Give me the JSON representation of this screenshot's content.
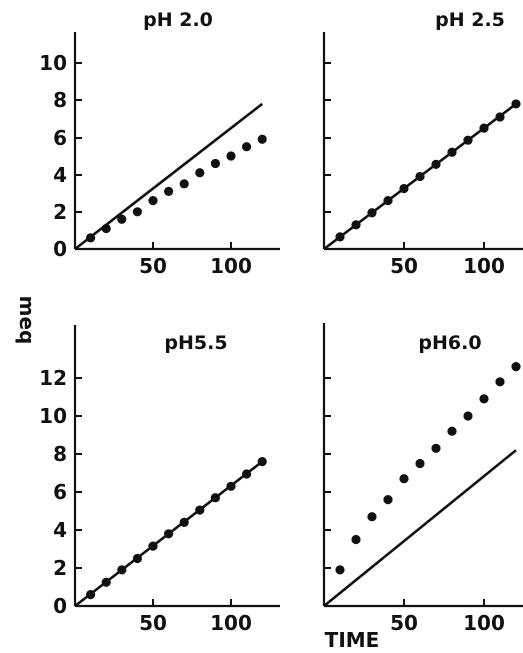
{
  "figure": {
    "ylabel": "meq",
    "xlabel": "TIME"
  },
  "chart_data": [
    {
      "type": "scatter",
      "title": "pH 2.0",
      "xlim": [
        0,
        130
      ],
      "ylim": [
        0,
        11
      ],
      "x_ticks": [
        50,
        100
      ],
      "y_ticks": [
        0,
        2,
        4,
        6,
        8,
        10
      ],
      "line": {
        "x": [
          0,
          120
        ],
        "y": [
          0,
          7.8
        ]
      },
      "points": {
        "x": [
          10,
          20,
          30,
          40,
          50,
          60,
          70,
          80,
          90,
          100,
          110,
          120
        ],
        "y": [
          0.6,
          1.1,
          1.6,
          2.0,
          2.6,
          3.1,
          3.5,
          4.1,
          4.6,
          5.0,
          5.5,
          5.9
        ]
      }
    },
    {
      "type": "scatter",
      "title": "pH 2.5",
      "xlim": [
        0,
        130
      ],
      "ylim": [
        0,
        11
      ],
      "x_ticks": [
        50,
        100
      ],
      "y_ticks": [
        0,
        2,
        4,
        6,
        8,
        10
      ],
      "line": {
        "x": [
          0,
          120
        ],
        "y": [
          0,
          7.8
        ]
      },
      "points": {
        "x": [
          10,
          20,
          30,
          40,
          50,
          60,
          70,
          80,
          90,
          100,
          110,
          120
        ],
        "y": [
          0.65,
          1.3,
          1.95,
          2.6,
          3.25,
          3.9,
          4.55,
          5.2,
          5.85,
          6.5,
          7.1,
          7.8
        ]
      }
    },
    {
      "type": "scatter",
      "title": "pH5.5",
      "xlim": [
        0,
        130
      ],
      "ylim": [
        0,
        14
      ],
      "x_ticks": [
        50,
        100
      ],
      "y_ticks": [
        0,
        2,
        4,
        6,
        8,
        10,
        12
      ],
      "line": {
        "x": [
          0,
          120
        ],
        "y": [
          0,
          7.6
        ]
      },
      "points": {
        "x": [
          10,
          20,
          30,
          40,
          50,
          60,
          70,
          80,
          90,
          100,
          110,
          120
        ],
        "y": [
          0.6,
          1.25,
          1.9,
          2.5,
          3.15,
          3.8,
          4.4,
          5.05,
          5.7,
          6.3,
          6.95,
          7.6
        ]
      }
    },
    {
      "type": "scatter",
      "title": "pH6.0",
      "xlim": [
        0,
        130
      ],
      "ylim": [
        0,
        14
      ],
      "x_ticks": [
        50,
        100
      ],
      "y_ticks": [
        0,
        2,
        4,
        6,
        8,
        10,
        12
      ],
      "line": {
        "x": [
          0,
          120
        ],
        "y": [
          0,
          8.2
        ]
      },
      "points": {
        "x": [
          10,
          20,
          30,
          40,
          50,
          60,
          70,
          80,
          90,
          100,
          110,
          120
        ],
        "y": [
          1.9,
          3.5,
          4.7,
          5.6,
          6.7,
          7.5,
          8.3,
          9.2,
          10.0,
          10.9,
          11.8,
          12.6
        ]
      }
    }
  ]
}
